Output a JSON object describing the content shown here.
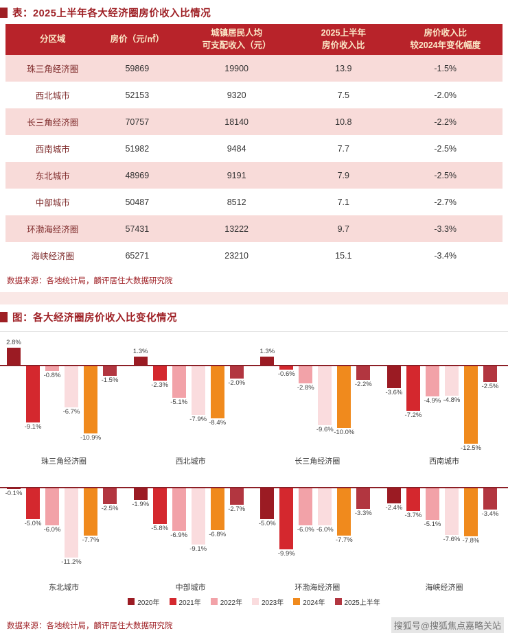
{
  "colors": {
    "accent": "#9E1F24",
    "table_header_bg": "#B8232A",
    "table_header_text": "#FBE9C8",
    "row_alt_bg": "#F8DBD9",
    "axis_line": "#8C1F26",
    "year_colors": [
      "#9B1B23",
      "#D4282E",
      "#F2A2A8",
      "#FADCDE",
      "#F08A1D",
      "#B23640"
    ]
  },
  "table_section": {
    "title": "表：2025上半年各大经济圈房价收入比情况",
    "columns": [
      {
        "line1": "分区域",
        "line2": ""
      },
      {
        "line1": "房价（元/㎡）",
        "line2": ""
      },
      {
        "line1": "城镇居民人均",
        "line2": "可支配收入（元）"
      },
      {
        "line1": "2025上半年",
        "line2": "房价收入比"
      },
      {
        "line1": "房价收入比",
        "line2": "较2024年变化幅度"
      }
    ],
    "rows": [
      {
        "region": "珠三角经济圈",
        "price": "59869",
        "income": "19900",
        "ratio": "13.9",
        "change": "-1.5%"
      },
      {
        "region": "西北城市",
        "price": "52153",
        "income": "9320",
        "ratio": "7.5",
        "change": "-2.0%"
      },
      {
        "region": "长三角经济圈",
        "price": "70757",
        "income": "18140",
        "ratio": "10.8",
        "change": "-2.2%"
      },
      {
        "region": "西南城市",
        "price": "51982",
        "income": "9484",
        "ratio": "7.7",
        "change": "-2.5%"
      },
      {
        "region": "东北城市",
        "price": "48969",
        "income": "9191",
        "ratio": "7.9",
        "change": "-2.5%"
      },
      {
        "region": "中部城市",
        "price": "50487",
        "income": "8512",
        "ratio": "7.1",
        "change": "-2.7%"
      },
      {
        "region": "环渤海经济圈",
        "price": "57431",
        "income": "13222",
        "ratio": "9.7",
        "change": "-3.3%"
      },
      {
        "region": "海峡经济圈",
        "price": "65271",
        "income": "23210",
        "ratio": "15.1",
        "change": "-3.4%"
      }
    ],
    "source": "数据来源：各地统计局，麟评居住大数据研究院"
  },
  "chart_section": {
    "title": "图：各大经济圈房价收入比变化情况",
    "source": "数据来源：各地统计局，麟评居住大数据研究院"
  },
  "chart_data": {
    "type": "bar",
    "unit": "%",
    "title": "各大经济圈房价收入比变化情况",
    "series_years": [
      "2020年",
      "2021年",
      "2022年",
      "2023年",
      "2024年",
      "2025上半年"
    ],
    "legend_position": "bottom",
    "ylim": [
      -13,
      3
    ],
    "groups": [
      {
        "name": "珠三角经济圈",
        "values": [
          2.8,
          -9.1,
          -0.8,
          -6.7,
          -10.9,
          -1.5
        ]
      },
      {
        "name": "西北城市",
        "values": [
          1.3,
          -2.3,
          -5.1,
          -7.9,
          -8.4,
          -2.0
        ]
      },
      {
        "name": "长三角经济圈",
        "values": [
          1.3,
          -0.6,
          -2.8,
          -9.6,
          -10.0,
          -2.2
        ]
      },
      {
        "name": "西南城市",
        "values": [
          -3.6,
          -7.2,
          -4.9,
          -4.8,
          -12.5,
          -2.5
        ]
      },
      {
        "name": "东北城市",
        "values": [
          -0.1,
          -5.0,
          -6.0,
          -11.2,
          -7.7,
          -2.5
        ]
      },
      {
        "name": "中部城市",
        "values": [
          -1.9,
          -5.8,
          -6.9,
          -9.1,
          -6.8,
          -2.7
        ]
      },
      {
        "name": "环渤海经济圈",
        "values": [
          -5.0,
          -9.9,
          -6.0,
          -6.0,
          -7.7,
          -3.3
        ]
      },
      {
        "name": "海峡经济圈",
        "values": [
          -2.4,
          -3.7,
          -5.1,
          -7.6,
          -7.8,
          -3.4
        ]
      }
    ]
  },
  "watermark": "搜狐号@搜狐焦点嘉略关站"
}
